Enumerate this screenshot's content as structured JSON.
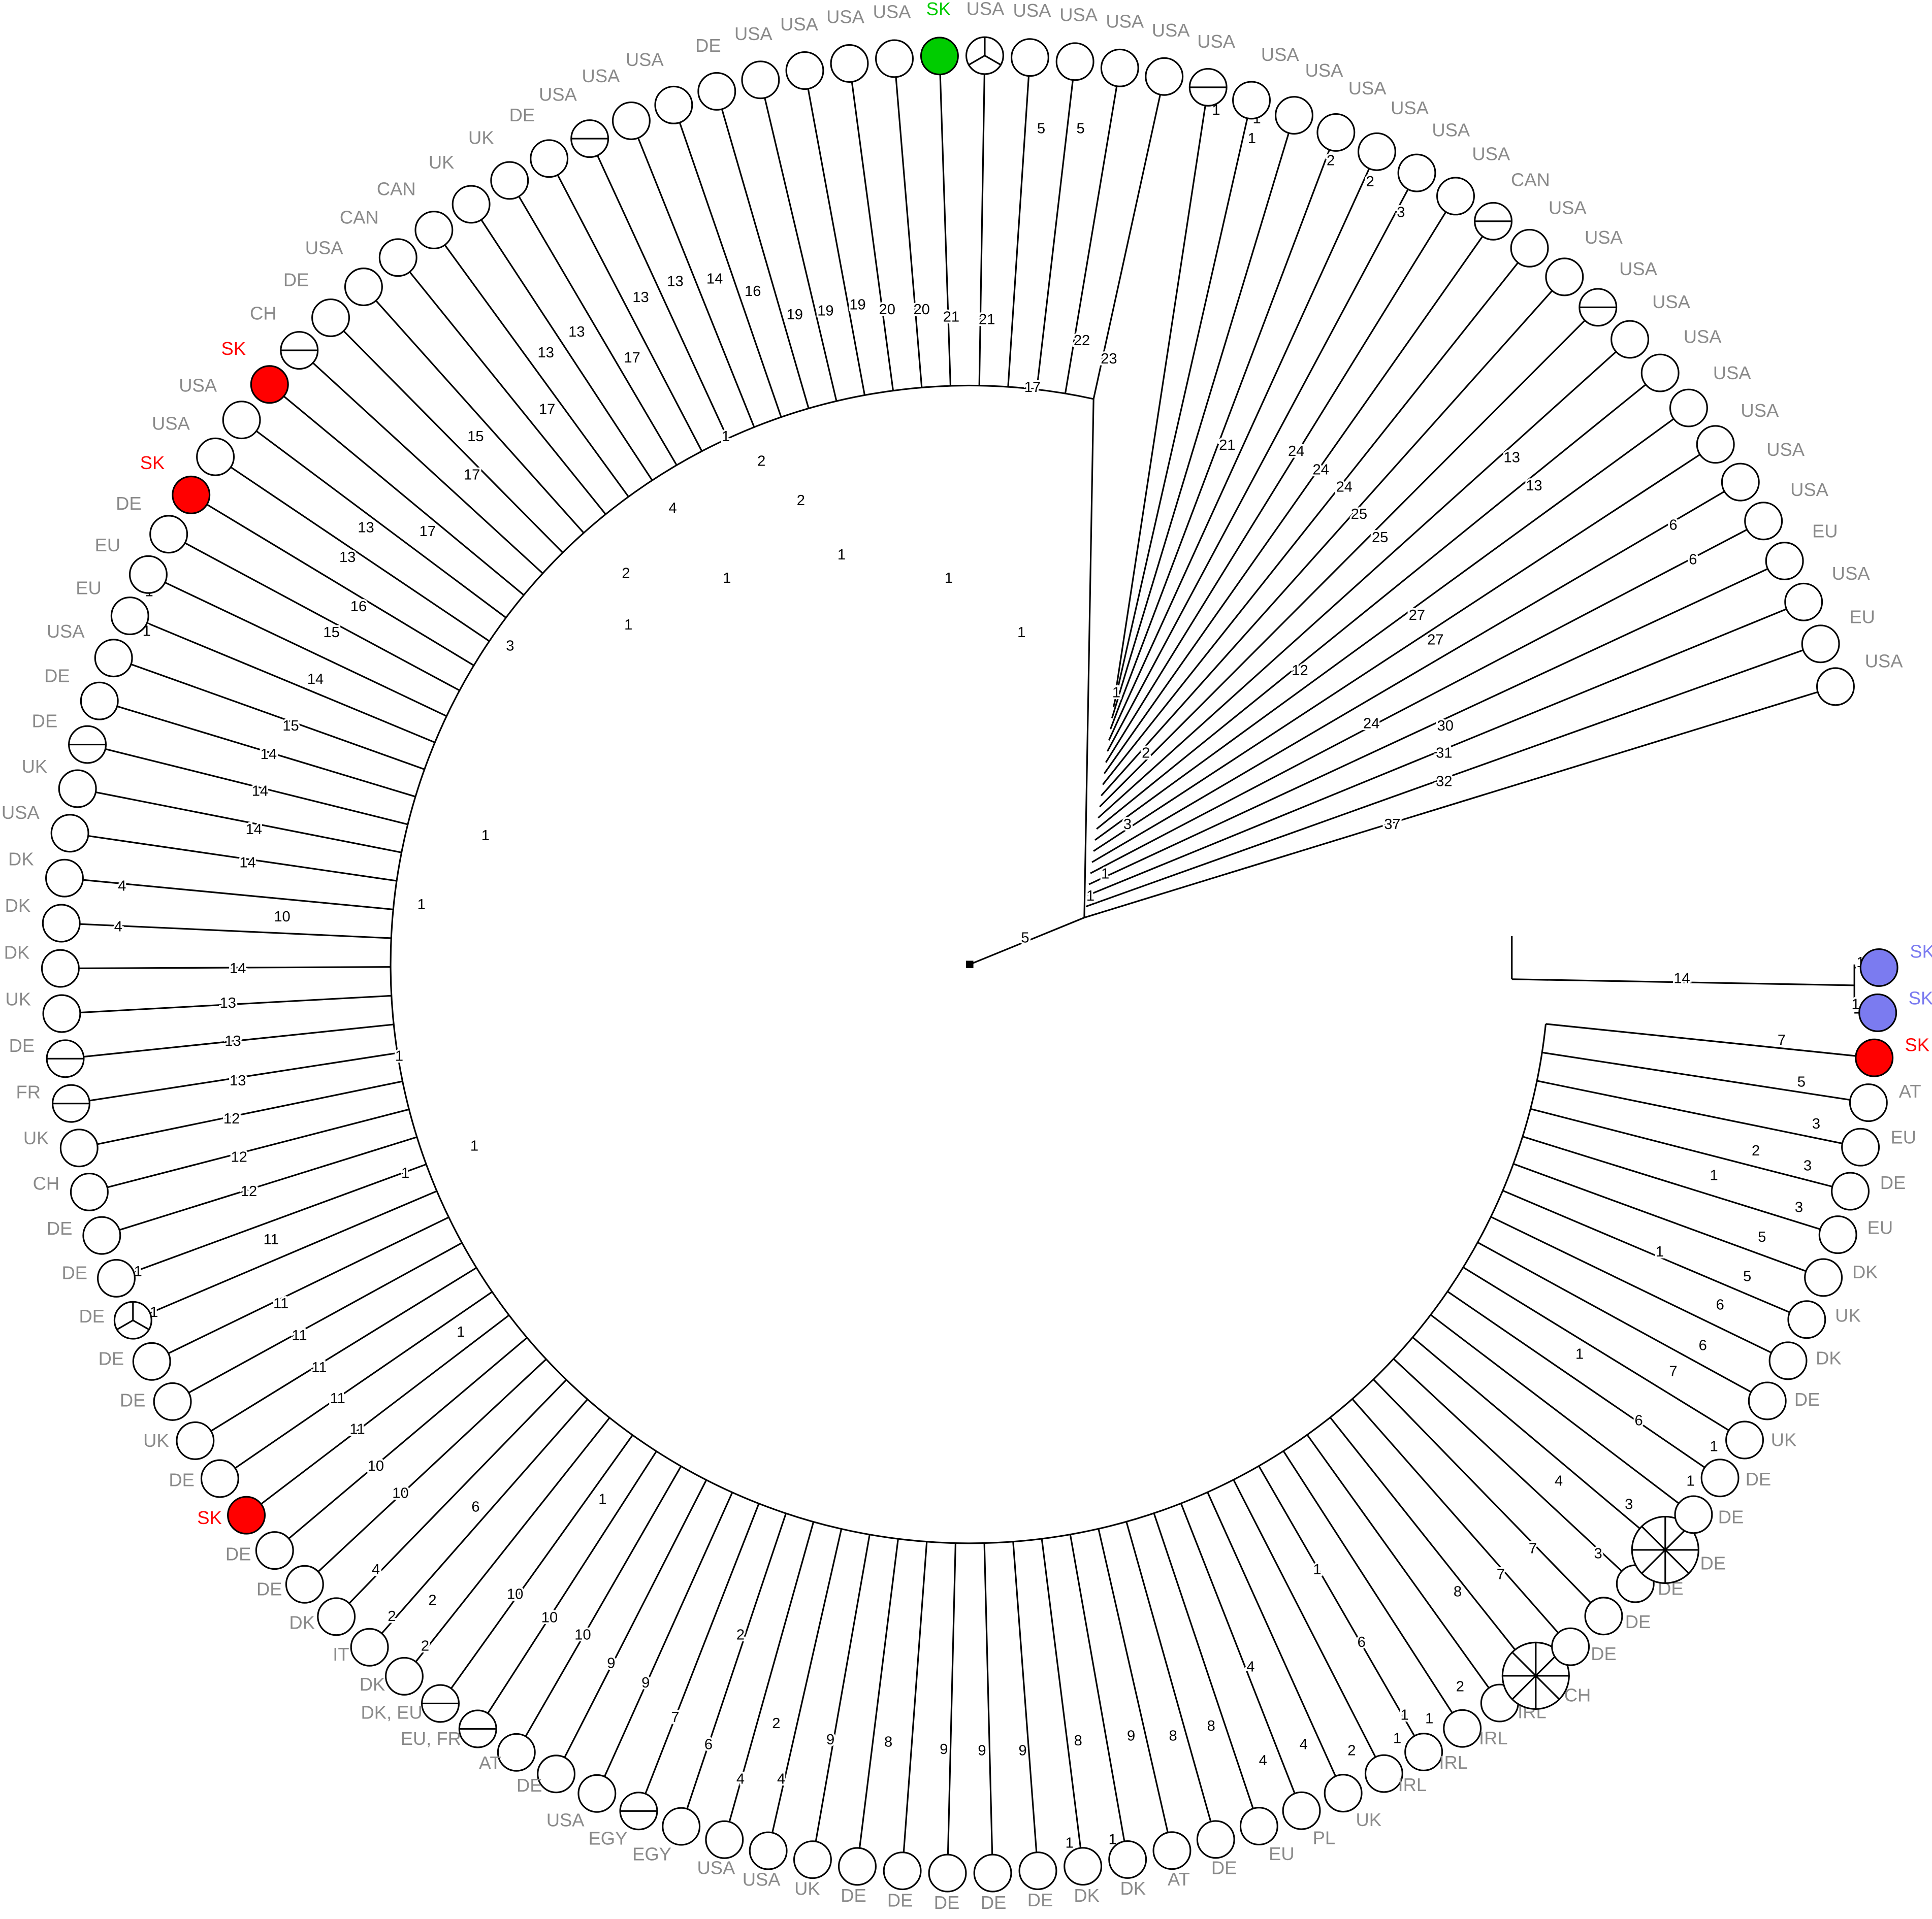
{
  "leaves": [
    {
      "label": "USA"
    },
    {
      "label": "EU"
    },
    {
      "label": "USA"
    },
    {
      "label": "EU"
    },
    {
      "label": "USA"
    },
    {
      "label": "USA"
    },
    {
      "label": "USA"
    },
    {
      "label": "USA"
    },
    {
      "label": "USA"
    },
    {
      "label": "USA"
    },
    {
      "label": "USA",
      "sectors": 2
    },
    {
      "label": "USA"
    },
    {
      "label": "USA"
    },
    {
      "label": "CAN",
      "sectors": 2
    },
    {
      "label": "USA"
    },
    {
      "label": "USA"
    },
    {
      "label": "USA"
    },
    {
      "label": "USA"
    },
    {
      "label": "USA"
    },
    {
      "label": "USA"
    },
    {
      "label": "USA",
      "sectors": 2
    },
    {
      "label": "USA"
    },
    {
      "label": "USA"
    },
    {
      "label": "USA"
    },
    {
      "label": "USA"
    },
    {
      "label": "USA",
      "sectors": 3
    },
    {
      "label": "SK",
      "fill": "#00cc00"
    },
    {
      "label": "USA"
    },
    {
      "label": "USA"
    },
    {
      "label": "USA"
    },
    {
      "label": "USA"
    },
    {
      "label": "DE"
    },
    {
      "label": "USA"
    },
    {
      "label": "USA"
    },
    {
      "label": "USA",
      "sectors": 2
    },
    {
      "label": "DE"
    },
    {
      "label": "UK"
    },
    {
      "label": "UK"
    },
    {
      "label": "CAN"
    },
    {
      "label": "CAN"
    },
    {
      "label": "USA"
    },
    {
      "label": "DE"
    },
    {
      "label": "CH",
      "sectors": 2
    },
    {
      "label": "SK",
      "fill": "#ff0000"
    },
    {
      "label": "USA"
    },
    {
      "label": "USA"
    },
    {
      "label": "SK",
      "fill": "#ff0000"
    },
    {
      "label": "DE"
    },
    {
      "label": "EU"
    },
    {
      "label": "EU"
    },
    {
      "label": "USA"
    },
    {
      "label": "DE"
    },
    {
      "label": "DE",
      "sectors": 2
    },
    {
      "label": "UK"
    },
    {
      "label": "USA"
    },
    {
      "label": "DK"
    },
    {
      "label": "DK"
    },
    {
      "label": "DK"
    },
    {
      "label": "UK"
    },
    {
      "label": "DE",
      "sectors": 2
    },
    {
      "label": "FR",
      "sectors": 2
    },
    {
      "label": "UK"
    },
    {
      "label": "CH"
    },
    {
      "label": "DE"
    },
    {
      "label": "DE"
    },
    {
      "label": "DE",
      "sectors": 3
    },
    {
      "label": "DE"
    },
    {
      "label": "DE"
    },
    {
      "label": "UK"
    },
    {
      "label": "DE"
    },
    {
      "label": "SK",
      "fill": "#ff0000"
    },
    {
      "label": "DE"
    },
    {
      "label": "DE"
    },
    {
      "label": "DK"
    },
    {
      "label": "IT"
    },
    {
      "label": "DK"
    },
    {
      "label": "DK, EU",
      "sectors": 2
    },
    {
      "label": "EU, FR",
      "sectors": 2
    },
    {
      "label": "AT"
    },
    {
      "label": "DE"
    },
    {
      "label": "USA"
    },
    {
      "label": "EGY",
      "sectors": 2
    },
    {
      "label": "EGY"
    },
    {
      "label": "USA"
    },
    {
      "label": "USA"
    },
    {
      "label": "UK"
    },
    {
      "label": "DE"
    },
    {
      "label": "DE"
    },
    {
      "label": "DE"
    },
    {
      "label": "DE"
    },
    {
      "label": "DE"
    },
    {
      "label": "DK"
    },
    {
      "label": "DK"
    },
    {
      "label": "AT"
    },
    {
      "label": "DE"
    },
    {
      "label": "EU"
    },
    {
      "label": "PL"
    },
    {
      "label": "UK"
    },
    {
      "label": "IRL"
    },
    {
      "label": "IRL"
    },
    {
      "label": "IRL"
    },
    {
      "label": "IRL"
    },
    {
      "label": "CH",
      "sectors": 8
    },
    {
      "label": "DE"
    },
    {
      "label": "DE"
    },
    {
      "label": "DE"
    },
    {
      "label": "DE",
      "sectors": 8
    },
    {
      "label": "DE"
    },
    {
      "label": "DE"
    },
    {
      "label": "UK"
    },
    {
      "label": "DE"
    },
    {
      "label": "DK"
    },
    {
      "label": "UK"
    },
    {
      "label": "DK"
    },
    {
      "label": "EU"
    },
    {
      "label": "DE"
    },
    {
      "label": "EU"
    },
    {
      "label": "AT"
    },
    {
      "label": "SK",
      "fill": "#ff0000"
    },
    {
      "label": "SK",
      "fill": "#7b7bf0"
    },
    {
      "label": "SK",
      "fill": "#7b7bf0"
    }
  ],
  "edge_labels": [
    1,
    1,
    1,
    2,
    2,
    3,
    21,
    24,
    24,
    24,
    25,
    25,
    13,
    13,
    27,
    27,
    12,
    6,
    6,
    24,
    30,
    31,
    32,
    37,
    1,
    2,
    3,
    1,
    1,
    5,
    5,
    5,
    17,
    22,
    23,
    21,
    21,
    20,
    20,
    19,
    19,
    19,
    16,
    14,
    13,
    13,
    17,
    13,
    17,
    13,
    15,
    4,
    2,
    1,
    2,
    2,
    1,
    1,
    1,
    1,
    1,
    3,
    17,
    17,
    13,
    13,
    16,
    15,
    14,
    15,
    14,
    14,
    14,
    14,
    10,
    4,
    4,
    14,
    13,
    13,
    13,
    12,
    12,
    12,
    11,
    1,
    1,
    11,
    11,
    11,
    11,
    11,
    10,
    10,
    6,
    4,
    2,
    2,
    2,
    10,
    10,
    10,
    9,
    9,
    7,
    6,
    4,
    4,
    2,
    2,
    9,
    8,
    9,
    9,
    9,
    8,
    1,
    1,
    9,
    8,
    8,
    4,
    4,
    4,
    6,
    2,
    1,
    1,
    1,
    2,
    8,
    7,
    7,
    4,
    3,
    3,
    1,
    1,
    6,
    7,
    6,
    6,
    5,
    5,
    3,
    3,
    3,
    5,
    7,
    14,
    1,
    1,
    1,
    1,
    1,
    1,
    1,
    1,
    1,
    1,
    1,
    1,
    1,
    2,
    1,
    1
  ]
}
